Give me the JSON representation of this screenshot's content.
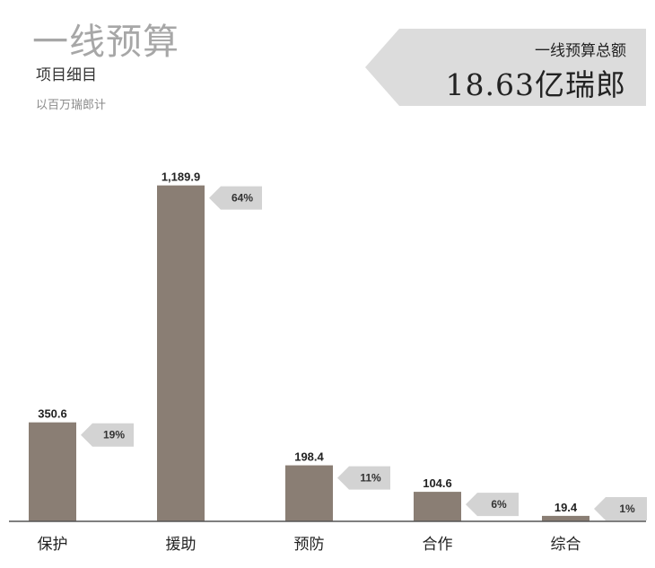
{
  "header": {
    "title": "一线预算",
    "subtitle": "项目细目",
    "unit": "以百万瑞郎计"
  },
  "total": {
    "label": "一线预算总额",
    "value": "18.63亿瑞郎"
  },
  "colors": {
    "bar": "#8a7e74",
    "badge": "#d3d3d3",
    "title": "#a7a7a7",
    "baseline": "#555555"
  },
  "chart_data": {
    "type": "bar",
    "categories": [
      "保护",
      "援助",
      "预防",
      "合作",
      "综合"
    ],
    "values": [
      350.6,
      1189.9,
      198.4,
      104.6,
      19.4
    ],
    "value_labels": [
      "350.6",
      "1,189.9",
      "198.4",
      "104.6",
      "19.4"
    ],
    "percent_labels": [
      "19%",
      "64%",
      "11%",
      "6%",
      "1%"
    ],
    "ylim": [
      0,
      1300
    ],
    "grid": false,
    "legend": "none"
  }
}
